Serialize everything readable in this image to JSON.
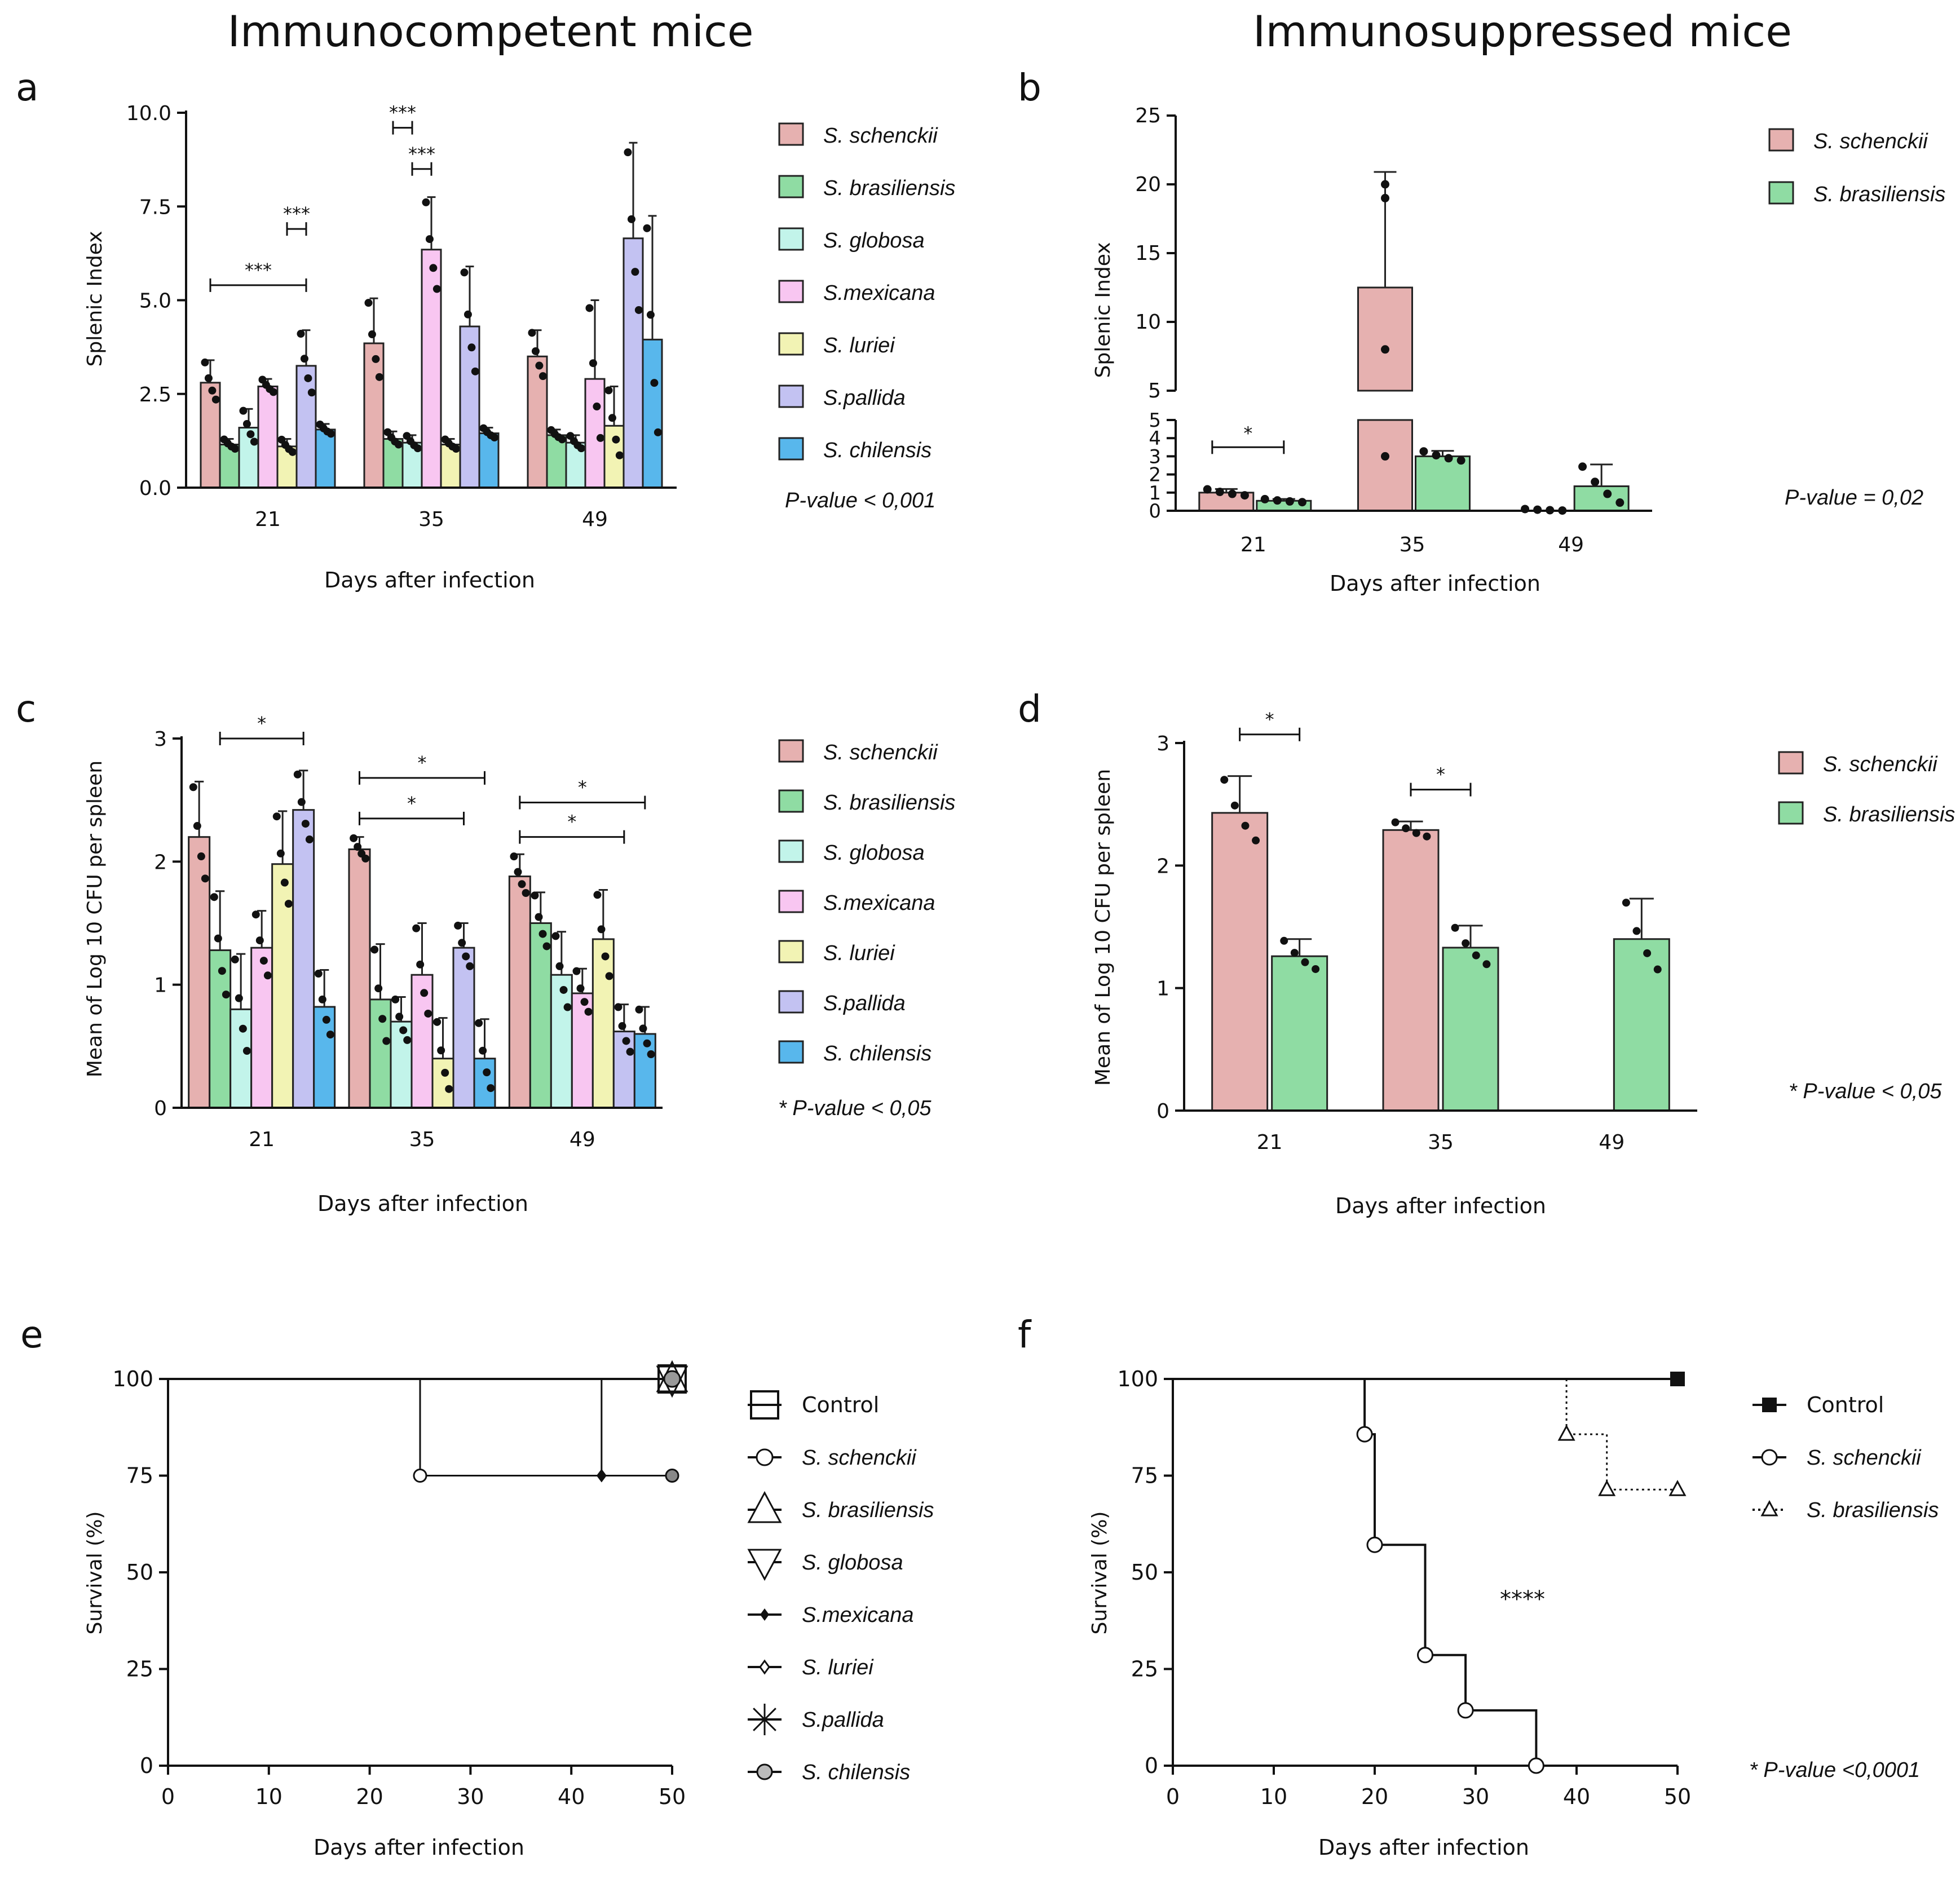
{
  "colors": {
    "schenckii": "#e6b1b0",
    "brasiliensis": "#8fdca3",
    "globosa": "#c2f4ea",
    "mexicana": "#f8c6f1",
    "luriei": "#f2f3b4",
    "pallida": "#c3c2f2",
    "chilensis": "#58b7ec",
    "axis": "#111111"
  },
  "headings": {
    "left": "Immunocompetent mice",
    "right": "Immunosuppressed mice"
  },
  "legend_species7": [
    "S. schenckii",
    "S. brasiliensis",
    "S. globosa",
    "S.mexicana",
    "S.  luriei",
    "S.pallida",
    "S. chilensis"
  ],
  "legend_species2": [
    "S. schenckii",
    "S. brasiliensis"
  ],
  "chart_data": [
    {
      "panel": "a",
      "type": "bar",
      "title": "",
      "xlabel": "Days after infection",
      "ylabel": "Splenic Index",
      "categories": [
        "21",
        "35",
        "49"
      ],
      "ylim": [
        0,
        10
      ],
      "yticks": [
        "0.0",
        "2.5",
        "5.0",
        "7.5",
        "10.0"
      ],
      "series": [
        {
          "name": "S. schenckii",
          "color_key": "schenckii",
          "values": [
            2.8,
            3.85,
            3.5
          ],
          "errors": [
            0.6,
            1.2,
            0.7
          ]
        },
        {
          "name": "S. brasiliensis",
          "color_key": "brasiliensis",
          "values": [
            1.15,
            1.3,
            1.4
          ],
          "errors": [
            0.15,
            0.2,
            0.15
          ]
        },
        {
          "name": "S. globosa",
          "color_key": "globosa",
          "values": [
            1.6,
            1.2,
            1.2
          ],
          "errors": [
            0.5,
            0.2,
            0.2
          ]
        },
        {
          "name": "S.mexicana",
          "color_key": "mexicana",
          "values": [
            2.7,
            6.35,
            2.9
          ],
          "errors": [
            0.2,
            1.4,
            2.1
          ]
        },
        {
          "name": "S.  luriei",
          "color_key": "luriei",
          "values": [
            1.1,
            1.15,
            1.65
          ],
          "errors": [
            0.2,
            0.15,
            1.05
          ]
        },
        {
          "name": "S.pallida",
          "color_key": "pallida",
          "values": [
            3.25,
            4.3,
            6.65
          ],
          "errors": [
            0.95,
            1.6,
            2.55
          ]
        },
        {
          "name": "S. chilensis",
          "color_key": "chilensis",
          "values": [
            1.55,
            1.45,
            3.95
          ],
          "errors": [
            0.15,
            0.15,
            3.3
          ]
        }
      ],
      "brackets": [
        {
          "group": 0,
          "from": 0,
          "to": 5,
          "y": 5.4,
          "label": "***"
        },
        {
          "group": 0,
          "from": 4,
          "to": 5,
          "y": 6.9,
          "label": "***"
        },
        {
          "group": 1,
          "from": 1,
          "to": 2,
          "y": 9.6,
          "label": "***"
        },
        {
          "group": 1,
          "from": 2,
          "to": 3,
          "y": 8.5,
          "label": "***"
        }
      ],
      "note": "P-value < 0,001"
    },
    {
      "panel": "b",
      "type": "bar",
      "title": "",
      "xlabel": "Days after infection",
      "ylabel": "Splenic Index",
      "categories": [
        "21",
        "35",
        "49"
      ],
      "y_axis_broken": true,
      "yticks_lower": [
        "0",
        "1",
        "2",
        "3",
        "4",
        "5"
      ],
      "yticks_upper": [
        "5",
        "10",
        "15",
        "20",
        "25"
      ],
      "series": [
        {
          "name": "S. schenckii",
          "color_key": "schenckii",
          "values": [
            1.0,
            12.5,
            0.05
          ],
          "errors": [
            0.2,
            8.4,
            0
          ]
        },
        {
          "name": "S. brasiliensis",
          "color_key": "brasiliensis",
          "values": [
            0.55,
            3.0,
            1.35
          ],
          "errors": [
            0.1,
            0.3,
            1.2
          ]
        }
      ],
      "brackets": [
        {
          "group": 0,
          "from": 0,
          "to": 1,
          "y": 3.5,
          "label": "*"
        }
      ],
      "note": "P-value = 0,02"
    },
    {
      "panel": "c",
      "type": "bar",
      "title": "",
      "xlabel": "Days after infection",
      "ylabel": "Mean of Log 10 CFU per spleen",
      "categories": [
        "21",
        "35",
        "49"
      ],
      "ylim": [
        0,
        3
      ],
      "yticks": [
        "0",
        "1",
        "2",
        "3"
      ],
      "series": [
        {
          "name": "S. schenckii",
          "color_key": "schenckii",
          "values": [
            2.2,
            2.1,
            1.88
          ],
          "errors": [
            0.45,
            0.1,
            0.18
          ]
        },
        {
          "name": "S. brasiliensis",
          "color_key": "brasiliensis",
          "values": [
            1.28,
            0.88,
            1.5
          ],
          "errors": [
            0.48,
            0.45,
            0.25
          ]
        },
        {
          "name": "S. globosa",
          "color_key": "globosa",
          "values": [
            0.8,
            0.7,
            1.08
          ],
          "errors": [
            0.45,
            0.2,
            0.35
          ]
        },
        {
          "name": "S.mexicana",
          "color_key": "mexicana",
          "values": [
            1.3,
            1.08,
            0.93
          ],
          "errors": [
            0.3,
            0.42,
            0.2
          ]
        },
        {
          "name": "S.  luriei",
          "color_key": "luriei",
          "values": [
            1.98,
            0.4,
            1.37
          ],
          "errors": [
            0.43,
            0.33,
            0.4
          ]
        },
        {
          "name": "S.pallida",
          "color_key": "pallida",
          "values": [
            2.42,
            1.3,
            0.62
          ],
          "errors": [
            0.32,
            0.2,
            0.22
          ]
        },
        {
          "name": "S. chilensis",
          "color_key": "chilensis",
          "values": [
            0.82,
            0.4,
            0.6
          ],
          "errors": [
            0.3,
            0.32,
            0.22
          ]
        }
      ],
      "brackets": [
        {
          "group": 0,
          "from": 1,
          "to": 5,
          "y": 3.0,
          "label": "*"
        },
        {
          "group": 1,
          "from": 0,
          "to": 6,
          "y": 2.68,
          "label": "*"
        },
        {
          "group": 1,
          "from": 0,
          "to": 5,
          "y": 2.35,
          "label": "*"
        },
        {
          "group": 2,
          "from": 0,
          "to": 6,
          "y": 2.48,
          "label": "*"
        },
        {
          "group": 2,
          "from": 0,
          "to": 5,
          "y": 2.2,
          "label": "*"
        }
      ],
      "note": "* P-value < 0,05"
    },
    {
      "panel": "d",
      "type": "bar",
      "title": "",
      "xlabel": "Days after infection",
      "ylabel": "Mean of Log 10 CFU per spleen",
      "categories": [
        "21",
        "35",
        "49"
      ],
      "ylim": [
        0,
        3
      ],
      "yticks": [
        "0",
        "1",
        "2",
        "3"
      ],
      "series": [
        {
          "name": "S. schenckii",
          "color_key": "schenckii",
          "values": [
            2.43,
            2.29,
            null
          ],
          "errors": [
            0.3,
            0.07,
            0
          ]
        },
        {
          "name": "S. brasiliensis",
          "color_key": "brasiliensis",
          "values": [
            1.26,
            1.33,
            1.4
          ],
          "errors": [
            0.14,
            0.18,
            0.33
          ]
        }
      ],
      "brackets": [
        {
          "group": 0,
          "from": 0,
          "to": 1,
          "y": 3.07,
          "label": "*"
        },
        {
          "group": 1,
          "from": 0,
          "to": 1,
          "y": 2.62,
          "label": "*"
        }
      ],
      "note": "* P-value < 0,05"
    },
    {
      "panel": "e",
      "type": "line",
      "title": "",
      "xlabel": "Days  after infection",
      "ylabel": "Survival (%)",
      "xlim": [
        0,
        50
      ],
      "ylim": [
        0,
        100
      ],
      "xticks": [
        "0",
        "10",
        "20",
        "30",
        "40",
        "50"
      ],
      "yticks": [
        "0",
        "25",
        "50",
        "75",
        "100"
      ],
      "steps": {
        "x": [
          0,
          25,
          25,
          43,
          50
        ],
        "y": [
          100,
          100,
          75,
          75,
          75
        ]
      },
      "step_top": {
        "x": [
          25,
          50
        ],
        "y": [
          100,
          100
        ]
      },
      "step_drop2": {
        "x": [
          43,
          43
        ],
        "y": [
          100,
          75
        ]
      },
      "legend": [
        "Control",
        "S. schenckii",
        "S. brasiliensis",
        "S. globosa",
        "S.mexicana",
        "S.  luriei",
        "S.pallida",
        "S. chilensis"
      ]
    },
    {
      "panel": "f",
      "type": "line",
      "title": "",
      "xlabel": "Days  after infection",
      "ylabel": "Survival (%)",
      "xlim": [
        0,
        50
      ],
      "ylim": [
        0,
        100
      ],
      "xticks": [
        "0",
        "10",
        "20",
        "30",
        "40",
        "50"
      ],
      "yticks": [
        "0",
        "25",
        "50",
        "75",
        "100"
      ],
      "series": [
        {
          "name": "Control",
          "x": [
            0,
            50
          ],
          "y": [
            100,
            100
          ]
        },
        {
          "name": "S. schenckii",
          "x": [
            19,
            20,
            25,
            29,
            36
          ],
          "y": [
            85.7,
            57.1,
            28.6,
            14.3,
            0
          ]
        },
        {
          "name": "S. brasiliensis",
          "x": [
            39,
            43,
            50
          ],
          "y": [
            85.7,
            71.4,
            71.4
          ]
        }
      ],
      "legend": [
        "Control",
        "S. schenckii",
        "S. brasiliensis"
      ],
      "annotation": "****",
      "note": "* P-value <0,0001"
    }
  ]
}
